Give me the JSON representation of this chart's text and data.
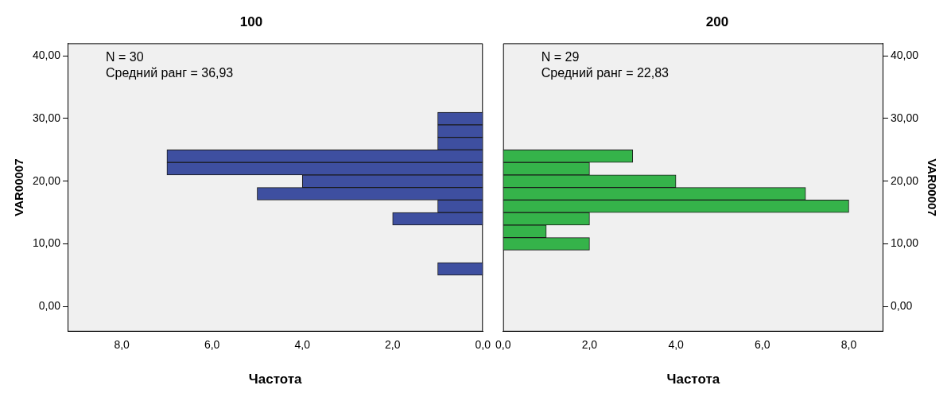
{
  "chart_data": [
    {
      "type": "histogram",
      "orientation": "horizontal",
      "title": "100",
      "xlabel": "Частота",
      "ylabel": "VAR00007",
      "bins": [
        5,
        7,
        9,
        11,
        13,
        15,
        17,
        19,
        21,
        23,
        25,
        27,
        29,
        31
      ],
      "values": [
        1,
        0,
        0,
        0,
        2,
        1,
        5,
        4,
        7,
        7,
        1,
        1,
        1
      ],
      "color": "#3e4fa0",
      "xlim": [
        9.2,
        0
      ],
      "xticks": [
        {
          "value": 8,
          "label": "8,0"
        },
        {
          "value": 6,
          "label": "6,0"
        },
        {
          "value": 4,
          "label": "4,0"
        },
        {
          "value": 2,
          "label": "2,0"
        },
        {
          "value": 0,
          "label": "0,0"
        }
      ],
      "ylim": [
        -4,
        42
      ],
      "yticks": [
        {
          "value": 0,
          "label": "0,00"
        },
        {
          "value": 10,
          "label": "10,00"
        },
        {
          "value": 20,
          "label": "20,00"
        },
        {
          "value": 30,
          "label": "30,00"
        },
        {
          "value": 40,
          "label": "40,00"
        }
      ],
      "annotations": [
        "N = 30",
        "Средний ранг = 36,93"
      ]
    },
    {
      "type": "histogram",
      "orientation": "horizontal",
      "title": "200",
      "xlabel": "Частота",
      "y2label": "VAR00007",
      "bins": [
        5,
        7,
        9,
        11,
        13,
        15,
        17,
        19,
        21,
        23,
        25,
        27,
        29,
        31
      ],
      "values": [
        0,
        0,
        2,
        1,
        2,
        8,
        7,
        4,
        2,
        3,
        0,
        0,
        0
      ],
      "color": "#35b34a",
      "xlim": [
        0,
        8.8
      ],
      "xticks": [
        {
          "value": 0,
          "label": "0,0"
        },
        {
          "value": 2,
          "label": "2,0"
        },
        {
          "value": 4,
          "label": "4,0"
        },
        {
          "value": 6,
          "label": "6,0"
        },
        {
          "value": 8,
          "label": "8,0"
        }
      ],
      "ylim": [
        -4,
        42
      ],
      "yticks": [
        {
          "value": 0,
          "label": "0,00"
        },
        {
          "value": 10,
          "label": "10,00"
        },
        {
          "value": 20,
          "label": "20,00"
        },
        {
          "value": 30,
          "label": "30,00"
        },
        {
          "value": 40,
          "label": "40,00"
        }
      ],
      "annotations": [
        "N = 29",
        "Средний ранг = 22,83"
      ]
    }
  ]
}
